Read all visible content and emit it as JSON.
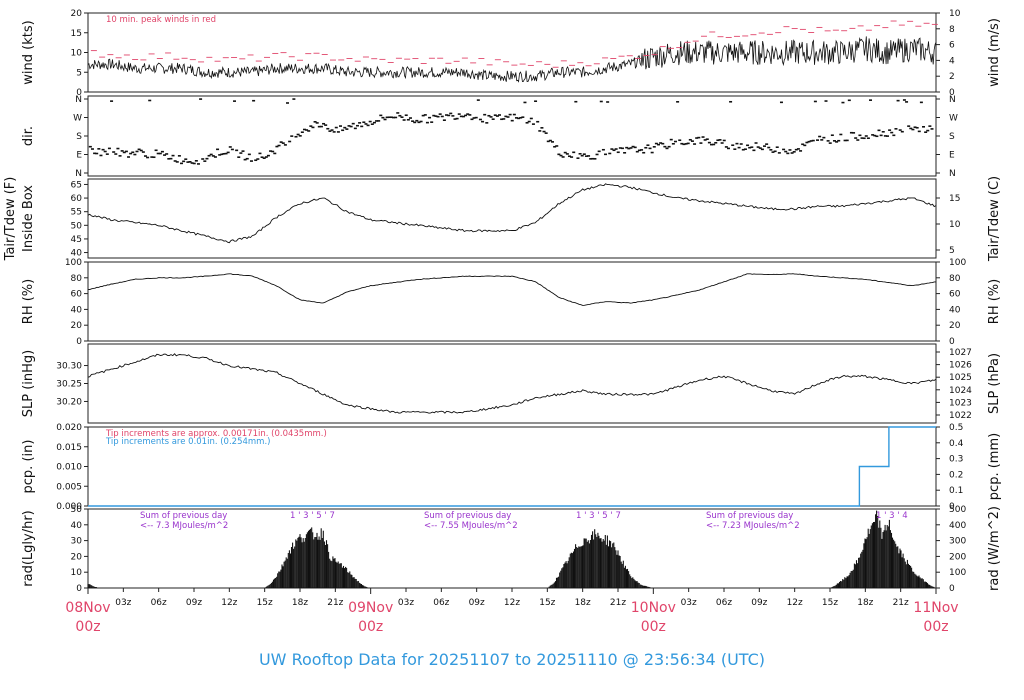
{
  "title": "UW Rooftop Data for 20251107  to  20251110 @ 23:56:34  (UTC)",
  "colors": {
    "accent": "#e0456a",
    "title": "#3399dd",
    "purple": "#9933cc",
    "blue": "#3399dd",
    "line": "#111111"
  },
  "x_axis": {
    "hour_ticks": [
      "03z",
      "06z",
      "09z",
      "12z",
      "15z",
      "18z",
      "21z",
      "03z",
      "06z",
      "09z",
      "12z",
      "15z",
      "18z",
      "21z",
      "03z",
      "06z",
      "09z",
      "12z",
      "15z",
      "18z",
      "21z"
    ],
    "hour_tick_hours": [
      3,
      6,
      9,
      12,
      15,
      18,
      21,
      27,
      30,
      33,
      36,
      39,
      42,
      45,
      51,
      54,
      57,
      60,
      63,
      66,
      69
    ],
    "day_labels": [
      {
        "date": "08Nov",
        "time": "00z",
        "hour": 0
      },
      {
        "date": "09Nov",
        "time": "00z",
        "hour": 24
      },
      {
        "date": "10Nov",
        "time": "00z",
        "hour": 48
      },
      {
        "date": "11Nov",
        "time": "00z",
        "hour": 72
      }
    ]
  },
  "chart_data": [
    {
      "id": "wind",
      "type": "line",
      "ylabel_left": "wind (kts)",
      "ylabel_right": "wind (m/s)",
      "ylim": [
        0,
        20
      ],
      "yticks": [
        "0",
        "5",
        "10",
        "15",
        "20"
      ],
      "yticks_right": [
        "0",
        "2",
        "4",
        "6",
        "8",
        "10"
      ],
      "annotation": "10 min. peak winds in red",
      "series": [
        {
          "name": "wind speed",
          "x": [
            0,
            2,
            4,
            6,
            8,
            10,
            12,
            14,
            16,
            18,
            20,
            22,
            24,
            26,
            28,
            30,
            32,
            34,
            36,
            38,
            40,
            42,
            44,
            46,
            48,
            50,
            52,
            54,
            56,
            58,
            60,
            62,
            64,
            66,
            68,
            70,
            72
          ],
          "values": [
            7,
            7,
            6,
            6,
            6,
            5,
            5,
            5,
            6,
            6,
            6,
            5,
            5,
            5,
            5,
            5,
            5,
            4,
            4,
            4,
            5,
            5,
            6,
            7,
            9,
            10,
            10,
            10,
            10,
            10,
            10,
            10,
            10,
            11,
            10,
            11,
            10
          ]
        },
        {
          "name": "10 min. peak winds",
          "x": [
            0,
            4,
            8,
            12,
            16,
            20,
            24,
            28,
            32,
            36,
            40,
            44,
            48,
            52,
            56,
            60,
            64,
            68,
            72
          ],
          "values": [
            10,
            9,
            9,
            8,
            9,
            9,
            8,
            8,
            8,
            7,
            7,
            8,
            10,
            14,
            15,
            16,
            15,
            17,
            17
          ]
        }
      ]
    },
    {
      "id": "dir",
      "type": "scatter",
      "ylabel_left": "dir.",
      "yticks": [
        "N",
        "E",
        "S",
        "W",
        "N"
      ],
      "yticks_right": [
        "N",
        "E",
        "S",
        "W",
        "N"
      ],
      "points": [
        [
          0.3,
          120
        ],
        [
          1,
          100
        ],
        [
          2,
          110
        ],
        [
          3,
          95
        ],
        [
          4,
          100
        ],
        [
          5,
          95
        ],
        [
          6,
          90
        ],
        [
          7,
          80
        ],
        [
          8,
          65
        ],
        [
          9,
          60
        ],
        [
          10,
          70
        ],
        [
          11,
          100
        ],
        [
          12,
          110
        ],
        [
          13,
          90
        ],
        [
          14,
          75
        ],
        [
          15,
          80
        ],
        [
          16,
          120
        ],
        [
          17,
          150
        ],
        [
          18,
          200
        ],
        [
          19,
          230
        ],
        [
          20,
          240
        ],
        [
          21,
          200
        ],
        [
          22,
          220
        ],
        [
          24,
          250
        ],
        [
          26,
          280
        ],
        [
          28,
          260
        ],
        [
          30,
          270
        ],
        [
          32,
          290
        ],
        [
          34,
          260
        ],
        [
          36,
          270
        ],
        [
          38,
          250
        ],
        [
          40,
          100
        ],
        [
          42,
          80
        ],
        [
          44,
          95
        ],
        [
          46,
          110
        ],
        [
          48,
          120
        ],
        [
          50,
          150
        ],
        [
          52,
          160
        ],
        [
          54,
          140
        ],
        [
          56,
          130
        ],
        [
          58,
          120
        ],
        [
          60,
          110
        ],
        [
          62,
          160
        ],
        [
          64,
          170
        ],
        [
          66,
          185
        ],
        [
          68,
          200
        ],
        [
          70,
          210
        ],
        [
          71.5,
          215
        ]
      ]
    },
    {
      "id": "temp",
      "type": "line",
      "ylabel_left": "Tair/Tdew (F)\nInside Box",
      "ylabel_right": "Tair/Tdew (C)",
      "ylim": [
        38,
        67
      ],
      "yticks": [
        "40",
        "45",
        "50",
        "55",
        "60",
        "65"
      ],
      "yticks_right": [
        "5",
        "10",
        "15"
      ],
      "series": [
        {
          "name": "air temperature",
          "x": [
            0,
            2,
            4,
            6,
            8,
            10,
            12,
            14,
            16,
            18,
            20,
            22,
            24,
            26,
            28,
            30,
            32,
            34,
            36,
            38,
            40,
            42,
            44,
            46,
            48,
            50,
            52,
            54,
            56,
            58,
            60,
            62,
            64,
            66,
            68,
            70,
            72
          ],
          "values": [
            54,
            52,
            51,
            50,
            48,
            46,
            44,
            46,
            53,
            58,
            60,
            55,
            52,
            51,
            50,
            49,
            48,
            48,
            48,
            51,
            58,
            63,
            65,
            64,
            62,
            60,
            59,
            58,
            57,
            56,
            56,
            57,
            57,
            58,
            59,
            60,
            57
          ]
        }
      ]
    },
    {
      "id": "rh",
      "type": "line",
      "ylabel_left": "RH (%)",
      "ylabel_right": "RH (%)",
      "ylim": [
        0,
        100
      ],
      "yticks": [
        "0",
        "20",
        "40",
        "60",
        "80",
        "100"
      ],
      "yticks_right": [
        "0",
        "20",
        "40",
        "60",
        "80",
        "100"
      ],
      "series": [
        {
          "name": "relative humidity",
          "x": [
            0,
            2,
            4,
            6,
            8,
            10,
            12,
            14,
            16,
            18,
            20,
            22,
            24,
            26,
            28,
            30,
            32,
            34,
            36,
            38,
            40,
            42,
            44,
            46,
            48,
            50,
            52,
            54,
            56,
            58,
            60,
            62,
            64,
            66,
            68,
            70,
            72
          ],
          "values": [
            65,
            72,
            78,
            80,
            80,
            82,
            85,
            82,
            70,
            52,
            48,
            62,
            70,
            74,
            78,
            80,
            82,
            82,
            82,
            75,
            55,
            45,
            50,
            48,
            52,
            58,
            65,
            75,
            85,
            84,
            85,
            82,
            80,
            78,
            74,
            70,
            75
          ]
        }
      ]
    },
    {
      "id": "slp",
      "type": "line",
      "ylabel_left": "SLP (inHg)",
      "ylabel_right": "SLP (hPa)",
      "ylim": [
        30.14,
        30.36
      ],
      "yticks": [
        "30.20",
        "30.25",
        "30.30"
      ],
      "yticks_right": [
        "1022",
        "1023",
        "1024",
        "1025",
        "1026",
        "1027"
      ],
      "series": [
        {
          "name": "sea level pressure",
          "x": [
            0,
            2,
            4,
            6,
            8,
            10,
            12,
            14,
            16,
            18,
            20,
            22,
            24,
            26,
            28,
            30,
            32,
            34,
            36,
            38,
            40,
            42,
            44,
            46,
            48,
            50,
            52,
            54,
            56,
            58,
            60,
            62,
            64,
            66,
            68,
            70,
            72
          ],
          "values": [
            30.27,
            30.29,
            30.31,
            30.33,
            30.33,
            30.32,
            30.3,
            30.29,
            30.28,
            30.25,
            30.22,
            30.19,
            30.18,
            30.17,
            30.17,
            30.17,
            30.17,
            30.18,
            30.19,
            30.21,
            30.22,
            30.23,
            30.22,
            30.22,
            30.22,
            30.24,
            30.26,
            30.27,
            30.25,
            30.23,
            30.22,
            30.25,
            30.27,
            30.27,
            30.26,
            30.25,
            30.26
          ]
        }
      ]
    },
    {
      "id": "pcp",
      "type": "line",
      "ylabel_left": "pcp. (in)",
      "ylabel_right": "pcp. (mm)",
      "ylim": [
        0,
        0.02
      ],
      "yticks": [
        "0.000",
        "0.005",
        "0.010",
        "0.015",
        "0.020"
      ],
      "yticks_right": [
        "0",
        "0.1",
        "0.2",
        "0.3",
        "0.4",
        "0.5"
      ],
      "annotations": [
        "Tip increments are approx. 0.00171in. (0.0435mm.)",
        "Tip increments are 0.01in. (0.254mm.)"
      ],
      "series": [
        {
          "name": "accumulated precipitation",
          "x": [
            0,
            65.5,
            65.5,
            68,
            68,
            72
          ],
          "values": [
            0,
            0,
            0.01,
            0.01,
            0.02,
            0.02
          ]
        }
      ]
    },
    {
      "id": "rad",
      "type": "area",
      "ylabel_left": "rad(Lgly/hr)",
      "ylabel_right": "rad (W/m^2)",
      "ylim": [
        0,
        50
      ],
      "yticks": [
        "0",
        "10",
        "20",
        "30",
        "40",
        "50"
      ],
      "yticks_right": [
        "0",
        "100",
        "200",
        "300",
        "400",
        "500"
      ],
      "daily_totals": [
        {
          "label": "Sum of previous day",
          "value": "<-- 7.3 MJoules/m^2",
          "hour_labels": "1 ' 3 ' 5 '  7"
        },
        {
          "label": "Sum of previous day",
          "value": "<-- 7.55 MJoules/m^2",
          "hour_labels": "1 ' 3 ' 5 '  7"
        },
        {
          "label": "Sum of previous day",
          "value": "<-- 7.23 MJoules/m^2",
          "hour_labels": "1 ' 3 ' 4"
        }
      ],
      "series": [
        {
          "name": "solar radiation",
          "x": [
            0,
            0.5,
            1,
            15,
            15.5,
            16,
            16.5,
            17,
            17.5,
            18,
            18.5,
            19,
            19.5,
            20,
            20.5,
            21,
            21.5,
            22,
            22.5,
            23,
            23.5,
            24,
            39,
            39.5,
            40,
            40.5,
            41,
            41.5,
            42,
            42.5,
            43,
            43.5,
            44,
            44.5,
            45,
            45.5,
            46,
            46.5,
            47,
            47.5,
            48,
            63,
            63.5,
            64,
            64.5,
            65,
            65.5,
            66,
            66.5,
            67,
            67.5,
            68,
            68.5,
            69,
            69.5,
            70,
            70.5,
            71,
            71.5,
            72
          ],
          "values": [
            3,
            1,
            0,
            0,
            3,
            8,
            15,
            24,
            30,
            34,
            36,
            37,
            36,
            38,
            22,
            18,
            16,
            12,
            8,
            4,
            1,
            0,
            0,
            3,
            9,
            16,
            22,
            28,
            32,
            34,
            36,
            35,
            33,
            30,
            24,
            16,
            9,
            5,
            2,
            1,
            0,
            0,
            2,
            5,
            8,
            14,
            20,
            34,
            40,
            48,
            35,
            46,
            30,
            24,
            18,
            12,
            8,
            5,
            2,
            0
          ]
        }
      ]
    }
  ]
}
